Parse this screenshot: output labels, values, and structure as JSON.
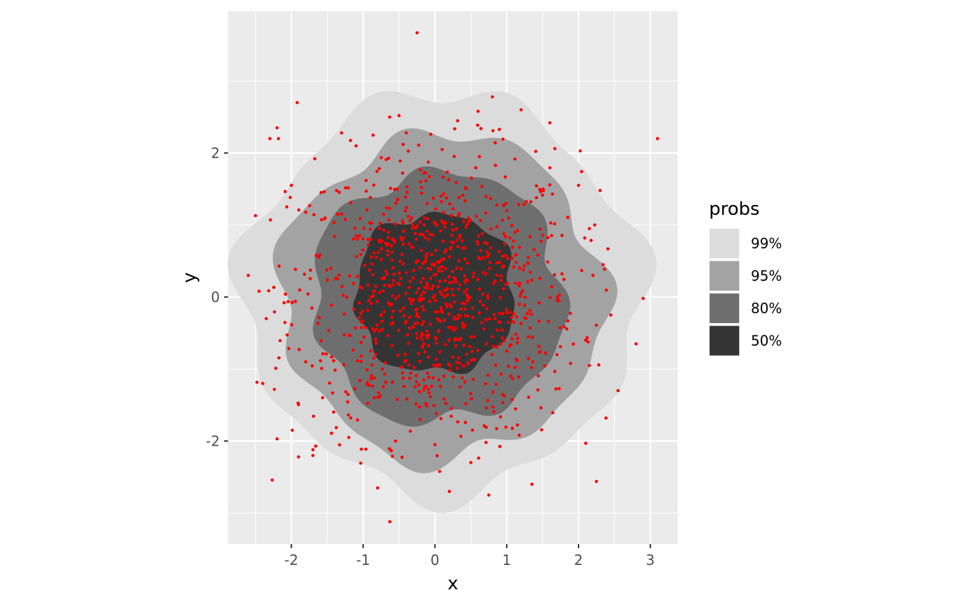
{
  "chart_data": {
    "type": "scatter",
    "subtype": "density-hdr-bands",
    "title": "",
    "xlabel": "x",
    "ylabel": "y",
    "xlim": [
      -2.88,
      3.38
    ],
    "ylim": [
      -3.43,
      3.97
    ],
    "x_ticks": [
      -2,
      -1,
      0,
      1,
      2,
      3
    ],
    "x_tick_labels": [
      "-2",
      "-1",
      "0",
      "1",
      "2",
      "3"
    ],
    "y_ticks": [
      -2,
      0,
      2
    ],
    "y_tick_labels": [
      "-2",
      "0",
      "2"
    ],
    "grid": true,
    "point_color": "#ff0000",
    "band_colors": [
      "#dcdcdc",
      "#a3a3a3",
      "#6e6e6e",
      "#343434"
    ],
    "legend": {
      "title": "probs",
      "position": "right",
      "entries": [
        {
          "label": "99%",
          "color": "#dcdcdc"
        },
        {
          "label": "95%",
          "color": "#a3a3a3"
        },
        {
          "label": "80%",
          "color": "#6e6e6e"
        },
        {
          "label": "50%",
          "color": "#343434"
        }
      ]
    },
    "bands": [
      {
        "name": "99%",
        "center": [
          0.1,
          0.05
        ],
        "radius": 2.75
      },
      {
        "name": "95%",
        "center": [
          0.1,
          0.0
        ],
        "radius": 2.25
      },
      {
        "name": "80%",
        "center": [
          0.05,
          0.0
        ],
        "radius": 1.75
      },
      {
        "name": "50%",
        "center": [
          0.0,
          0.05
        ],
        "radius": 1.12
      }
    ],
    "points": [
      [
        -0.25,
        3.67
      ],
      [
        3.1,
        2.2
      ],
      [
        -2.6,
        0.3
      ],
      [
        2.9,
        -0.02
      ],
      [
        -0.63,
        -3.12
      ],
      [
        0.8,
        2.78
      ],
      [
        -1.92,
        2.7
      ],
      [
        -2.3,
        2.2
      ],
      [
        -2.2,
        2.35
      ],
      [
        -2.18,
        2.2
      ],
      [
        -2.5,
        1.13
      ],
      [
        -2.45,
        0.08
      ],
      [
        -2.2,
        -1.97
      ],
      [
        -1.9,
        -2.22
      ],
      [
        -1.7,
        -2.2
      ],
      [
        -1.7,
        -2.12
      ],
      [
        -0.8,
        -2.65
      ],
      [
        0.75,
        -2.75
      ],
      [
        1.35,
        -2.6
      ],
      [
        2.55,
        -1.3
      ],
      [
        2.8,
        -0.65
      ],
      [
        2.3,
        1.48
      ],
      [
        1.6,
        2.42
      ],
      [
        1.2,
        2.6
      ],
      [
        0.6,
        2.58
      ],
      [
        -0.5,
        2.52
      ],
      [
        -0.4,
        2.28
      ],
      [
        -1.3,
        2.28
      ],
      [
        2.0,
        1.55
      ],
      [
        2.15,
        0.95
      ],
      [
        2.2,
        0.3
      ],
      [
        2.1,
        -0.6
      ],
      [
        2.1,
        -2.03
      ],
      [
        -2.0,
        1.55
      ],
      [
        -2.35,
        -0.3
      ],
      [
        -2.4,
        -1.2
      ],
      [
        0.0,
        -2.05
      ],
      [
        0.2,
        -2.7
      ],
      [
        -0.55,
        -2.0
      ],
      [
        1.0,
        1.2
      ],
      [
        -0.2,
        1.6
      ],
      [
        -1.8,
        -0.9
      ],
      [
        1.7,
        -0.8
      ],
      [
        0.5,
        -2.3
      ],
      [
        -1.1,
        2.1
      ],
      [
        0.1,
        2.05
      ],
      [
        2.45,
        -0.25
      ],
      [
        -1.2,
        -1.95
      ]
    ]
  }
}
